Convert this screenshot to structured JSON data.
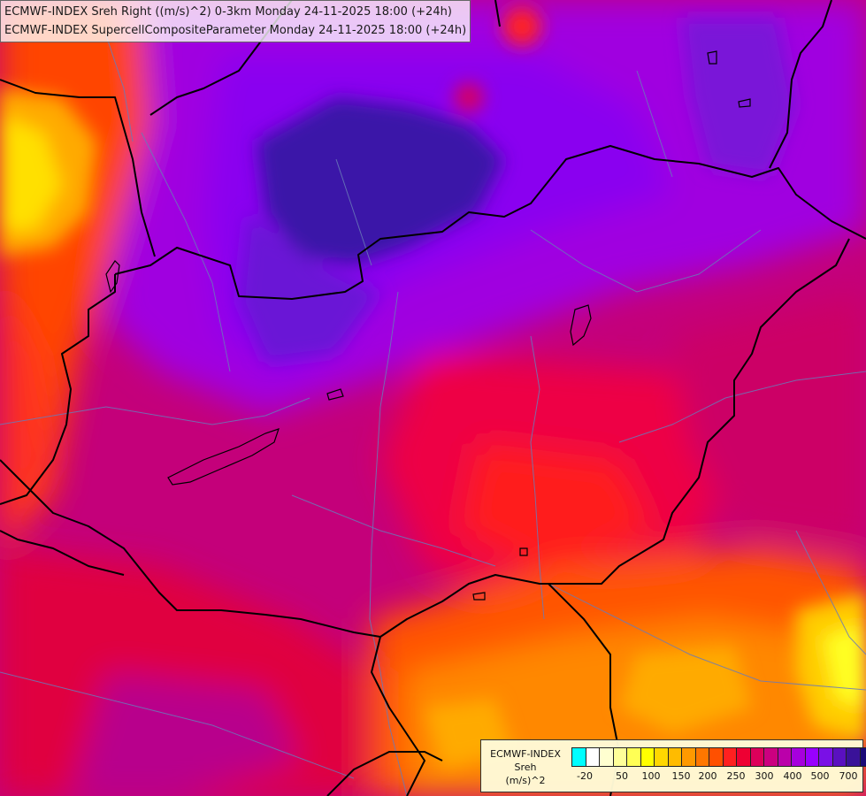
{
  "titles": {
    "line1": "ECMWF-INDEX Sreh Right ((m/s)^2) 0-3km Monday 24-11-2025 18:00 (+24h)",
    "line2": "ECMWF-INDEX SupercellCompositeParameter Monday 24-11-2025 18:00 (+24h)"
  },
  "legend": {
    "model": "ECMWF-INDEX",
    "parameter": "Sreh",
    "unit": "(m/s)^2",
    "colors": [
      "#00ffff",
      "#ffffff",
      "#ffffd0",
      "#ffff99",
      "#ffff55",
      "#ffff00",
      "#ffd700",
      "#ffbb00",
      "#ff9900",
      "#ff7700",
      "#ff5000",
      "#ff2020",
      "#ee0033",
      "#dd005a",
      "#cc0080",
      "#bb00aa",
      "#a700dd",
      "#9900ff",
      "#7a10e6",
      "#5a10c0",
      "#3a1299",
      "#1a0a77"
    ],
    "tick_labels": [
      "-20",
      "50",
      "100",
      "150",
      "200",
      "250",
      "300",
      "400",
      "500",
      "700"
    ]
  }
}
